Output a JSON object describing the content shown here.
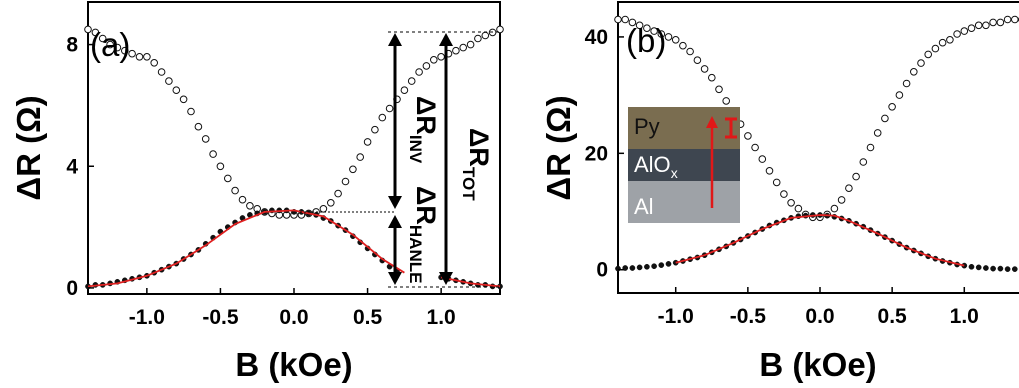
{
  "chart_data": [
    {
      "type": "scatter",
      "panel_label": "(a)",
      "xlabel": "B (kOe)",
      "ylabel": "ΔR (Ω)",
      "xlim": [
        -1.4,
        1.4
      ],
      "ylim": [
        -0.2,
        9.4
      ],
      "xticks": [
        "-1.0",
        "-0.5",
        "0.0",
        "0.5",
        "1.0"
      ],
      "yticks": [
        "0",
        "4",
        "8"
      ],
      "series": [
        {
          "marker": "open-circle",
          "x": [
            -1.4,
            -1.35,
            -1.3,
            -1.25,
            -1.2,
            -1.15,
            -1.1,
            -1.05,
            -1.0,
            -0.95,
            -0.9,
            -0.85,
            -0.8,
            -0.75,
            -0.7,
            -0.65,
            -0.6,
            -0.55,
            -0.5,
            -0.45,
            -0.4,
            -0.35,
            -0.3,
            -0.25,
            -0.2,
            -0.15,
            -0.1,
            -0.05,
            0.0,
            0.05,
            0.1,
            0.15,
            0.2,
            0.25,
            0.3,
            0.35,
            0.4,
            0.45,
            0.5,
            0.55,
            0.6,
            0.65,
            0.7,
            0.75,
            0.8,
            0.85,
            0.9,
            0.95,
            1.0,
            1.05,
            1.1,
            1.15,
            1.2,
            1.25,
            1.3,
            1.35,
            1.4
          ],
          "y": [
            8.5,
            8.4,
            8.2,
            8.0,
            7.9,
            7.8,
            7.7,
            7.6,
            7.6,
            7.4,
            7.1,
            6.8,
            6.5,
            6.2,
            5.8,
            5.3,
            4.9,
            4.4,
            4.0,
            3.6,
            3.2,
            2.9,
            2.7,
            2.6,
            2.5,
            2.45,
            2.4,
            2.4,
            2.4,
            2.4,
            2.45,
            2.5,
            2.6,
            2.8,
            3.1,
            3.5,
            3.9,
            4.3,
            4.8,
            5.2,
            5.6,
            5.9,
            6.2,
            6.5,
            6.8,
            7.1,
            7.3,
            7.5,
            7.6,
            7.7,
            7.8,
            7.9,
            8.0,
            8.2,
            8.3,
            8.4,
            8.5
          ]
        },
        {
          "marker": "filled-circle",
          "x": [
            -1.4,
            -1.35,
            -1.3,
            -1.25,
            -1.2,
            -1.15,
            -1.1,
            -1.05,
            -1.0,
            -0.95,
            -0.9,
            -0.85,
            -0.8,
            -0.75,
            -0.7,
            -0.65,
            -0.6,
            -0.55,
            -0.5,
            -0.45,
            -0.4,
            -0.35,
            -0.3,
            -0.25,
            -0.2,
            -0.15,
            -0.1,
            -0.05,
            0.0,
            0.05,
            0.1,
            0.15,
            0.2,
            0.25,
            0.3,
            0.35,
            0.4,
            0.45,
            0.5,
            0.55,
            0.6,
            0.65,
            0.7,
            1.0,
            1.05,
            1.1,
            1.15,
            1.2,
            1.25,
            1.3,
            1.35,
            1.4
          ],
          "y": [
            0.05,
            0.1,
            0.1,
            0.15,
            0.2,
            0.25,
            0.3,
            0.35,
            0.4,
            0.5,
            0.6,
            0.7,
            0.8,
            0.95,
            1.1,
            1.25,
            1.45,
            1.65,
            1.85,
            2.0,
            2.15,
            2.3,
            2.4,
            2.45,
            2.5,
            2.55,
            2.55,
            2.55,
            2.5,
            2.5,
            2.45,
            2.4,
            2.3,
            2.2,
            2.05,
            1.9,
            1.7,
            1.5,
            1.3,
            1.1,
            0.9,
            0.7,
            0.55,
            0.35,
            0.3,
            0.25,
            0.2,
            0.15,
            0.1,
            0.1,
            0.05,
            0.05
          ]
        },
        {
          "marker": "line",
          "color": "#e02020",
          "x": [
            -1.4,
            -1.2,
            -1.0,
            -0.8,
            -0.6,
            -0.4,
            -0.2,
            0.0,
            0.2,
            0.4,
            0.6,
            0.75
          ],
          "y": [
            0.05,
            0.15,
            0.4,
            0.8,
            1.4,
            2.1,
            2.5,
            2.55,
            2.35,
            1.75,
            0.95,
            0.5
          ]
        },
        {
          "marker": "line",
          "color": "#e02020",
          "x": [
            1.0,
            1.2,
            1.4
          ],
          "y": [
            0.35,
            0.15,
            0.05
          ]
        }
      ],
      "annotations": [
        {
          "text": "ΔR",
          "sub": "INV"
        },
        {
          "text": "ΔR",
          "sub": "HANLE"
        },
        {
          "text": "ΔR",
          "sub": "TOT"
        }
      ]
    },
    {
      "type": "scatter",
      "panel_label": "(b)",
      "xlabel": "B (kOe)",
      "ylabel": "ΔR (Ω)",
      "xlim": [
        -1.4,
        1.4
      ],
      "ylim": [
        -4,
        46
      ],
      "xticks": [
        "-1.0",
        "-0.5",
        "0.0",
        "0.5",
        "1.0"
      ],
      "yticks": [
        "0",
        "20",
        "40"
      ],
      "series": [
        {
          "marker": "open-circle",
          "x": [
            -1.4,
            -1.35,
            -1.3,
            -1.25,
            -1.2,
            -1.15,
            -1.1,
            -1.05,
            -1.0,
            -0.95,
            -0.9,
            -0.85,
            -0.8,
            -0.75,
            -0.7,
            -0.65,
            -0.6,
            -0.55,
            -0.5,
            -0.45,
            -0.4,
            -0.35,
            -0.3,
            -0.25,
            -0.2,
            -0.15,
            -0.1,
            -0.05,
            0.0,
            0.05,
            0.1,
            0.15,
            0.2,
            0.25,
            0.3,
            0.35,
            0.4,
            0.45,
            0.5,
            0.55,
            0.6,
            0.65,
            0.7,
            0.75,
            0.8,
            0.85,
            0.9,
            0.95,
            1.0,
            1.05,
            1.1,
            1.15,
            1.2,
            1.25,
            1.3,
            1.35,
            1.4
          ],
          "y": [
            43,
            43,
            42.5,
            42,
            41.5,
            41,
            40.5,
            40,
            39.5,
            38.5,
            37.5,
            36,
            34.5,
            33,
            31,
            29,
            27,
            25,
            23,
            21,
            19,
            17,
            15,
            13,
            11.5,
            10.5,
            9.5,
            9,
            9,
            9.5,
            10.5,
            12,
            14,
            16,
            18.5,
            21,
            23.5,
            26,
            28,
            30,
            32,
            34,
            35.5,
            37,
            38,
            39,
            39.5,
            40.5,
            41,
            41.5,
            42,
            42,
            42.5,
            42.5,
            43,
            43,
            43
          ]
        },
        {
          "marker": "filled-circle",
          "x": [
            -1.4,
            -1.35,
            -1.3,
            -1.25,
            -1.2,
            -1.15,
            -1.1,
            -1.05,
            -1.0,
            -0.95,
            -0.9,
            -0.85,
            -0.8,
            -0.75,
            -0.7,
            -0.65,
            -0.6,
            -0.55,
            -0.5,
            -0.45,
            -0.4,
            -0.35,
            -0.3,
            -0.25,
            -0.2,
            -0.15,
            -0.1,
            -0.05,
            0.0,
            0.05,
            0.1,
            0.15,
            0.2,
            0.25,
            0.3,
            0.35,
            0.4,
            0.45,
            0.5,
            0.55,
            0.6,
            0.65,
            0.7,
            0.75,
            0.8,
            0.85,
            0.9,
            0.95,
            1.0,
            1.05,
            1.1,
            1.15,
            1.2,
            1.25,
            1.3,
            1.35,
            1.4
          ],
          "y": [
            0.2,
            0.3,
            0.3,
            0.4,
            0.5,
            0.6,
            0.8,
            1.0,
            1.2,
            1.5,
            1.8,
            2.1,
            2.5,
            3.0,
            3.5,
            4.0,
            4.6,
            5.2,
            5.8,
            6.4,
            7.0,
            7.6,
            8.1,
            8.5,
            8.9,
            9.2,
            9.3,
            9.4,
            9.4,
            9.3,
            9.1,
            8.8,
            8.4,
            7.9,
            7.4,
            6.8,
            6.2,
            5.6,
            5.0,
            4.4,
            3.8,
            3.3,
            2.8,
            2.3,
            1.9,
            1.5,
            1.2,
            0.9,
            0.7,
            0.5,
            0.4,
            0.3,
            0.2,
            0.2,
            0.1,
            0.1,
            0.1
          ]
        },
        {
          "marker": "line",
          "color": "#e02020",
          "x": [
            -1.0,
            -0.8,
            -0.6,
            -0.4,
            -0.2,
            0.0,
            0.1,
            0.2,
            0.4,
            0.6,
            0.8,
            1.0
          ],
          "y": [
            1.2,
            2.5,
            4.6,
            7.0,
            8.9,
            9.4,
            9.3,
            8.4,
            6.2,
            3.8,
            1.9,
            0.7
          ]
        }
      ],
      "inset_layers": [
        {
          "label": "Py",
          "color": "#7a6d50"
        },
        {
          "label": "AlO",
          "sub": "x",
          "color": "#3e4650"
        },
        {
          "label": "Al",
          "color": "#9ea2a7"
        }
      ]
    }
  ]
}
